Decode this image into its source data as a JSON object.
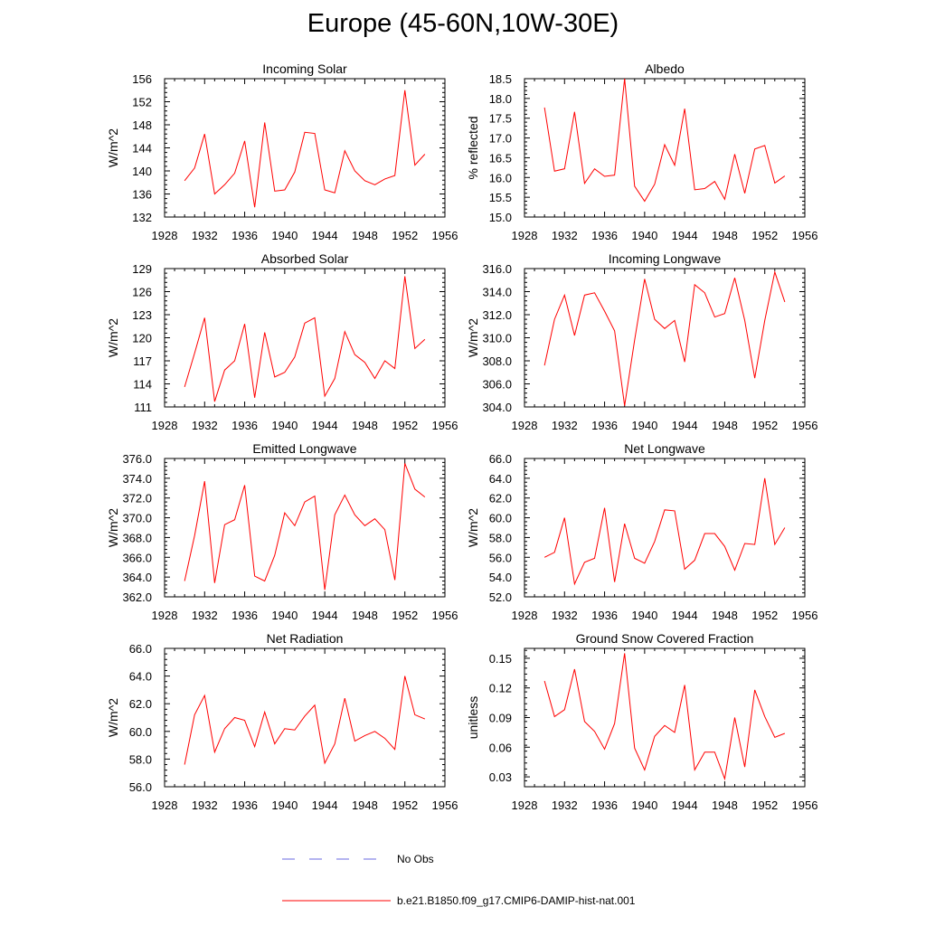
{
  "figure": {
    "title": "Europe (45-60N,10W-30E)"
  },
  "legend": {
    "entries": [
      {
        "label": "No Obs",
        "color": "#6a6ae0",
        "style": "dashed"
      },
      {
        "label": "b.e21.B1850.f09_g17.CMIP6-DAMIP-hist-nat.001",
        "color": "#ff0000",
        "style": "solid"
      }
    ]
  },
  "chart_data": [
    {
      "type": "line",
      "title": "Incoming Solar",
      "ylabel": "W/m^2",
      "xlim": [
        1928,
        1956
      ],
      "ylim": [
        132,
        156
      ],
      "xticks": [
        1928,
        1932,
        1936,
        1940,
        1944,
        1948,
        1952,
        1956
      ],
      "xtick_labels": [
        "1928",
        "1932",
        "1936",
        "1940",
        "1944",
        "1948",
        "1952",
        "1956"
      ],
      "yticks": [
        132,
        136,
        140,
        144,
        148,
        152,
        156
      ],
      "ytick_labels": [
        "132",
        "136",
        "140",
        "144",
        "148",
        "152",
        "156"
      ],
      "x": [
        1930,
        1931,
        1932,
        1933,
        1934,
        1935,
        1936,
        1937,
        1938,
        1939,
        1940,
        1941,
        1942,
        1943,
        1944,
        1945,
        1946,
        1947,
        1948,
        1949,
        1950,
        1951,
        1952,
        1953,
        1954
      ],
      "series": [
        {
          "color": "#ff0000",
          "values": [
            138.3,
            140.5,
            146.4,
            136.0,
            137.6,
            139.6,
            145.2,
            133.7,
            148.4,
            136.5,
            136.7,
            139.8,
            146.7,
            146.5,
            136.7,
            136.2,
            143.5,
            140.0,
            138.3,
            137.6,
            138.6,
            139.2,
            154.0,
            141.0,
            142.9
          ]
        }
      ]
    },
    {
      "type": "line",
      "title": "Albedo",
      "ylabel": "% reflected",
      "xlim": [
        1928,
        1956
      ],
      "ylim": [
        15.0,
        18.5
      ],
      "xticks": [
        1928,
        1932,
        1936,
        1940,
        1944,
        1948,
        1952,
        1956
      ],
      "xtick_labels": [
        "1928",
        "1932",
        "1936",
        "1940",
        "1944",
        "1948",
        "1952",
        "1956"
      ],
      "yticks": [
        15.0,
        15.5,
        16.0,
        16.5,
        17.0,
        17.5,
        18.0,
        18.5
      ],
      "ytick_labels": [
        "15.0",
        "15.5",
        "16.0",
        "16.5",
        "17.0",
        "17.5",
        "18.0",
        "18.5"
      ],
      "x": [
        1930,
        1931,
        1932,
        1933,
        1934,
        1935,
        1936,
        1937,
        1938,
        1939,
        1940,
        1941,
        1942,
        1943,
        1944,
        1945,
        1946,
        1947,
        1948,
        1949,
        1950,
        1951,
        1952,
        1953,
        1954
      ],
      "series": [
        {
          "color": "#ff0000",
          "values": [
            17.77,
            16.16,
            16.22,
            17.66,
            15.85,
            16.22,
            16.03,
            16.06,
            18.5,
            15.78,
            15.4,
            15.83,
            16.83,
            16.31,
            17.74,
            15.69,
            15.72,
            15.9,
            15.45,
            16.59,
            15.6,
            16.72,
            16.81,
            15.86,
            16.04
          ]
        }
      ]
    },
    {
      "type": "line",
      "title": "Absorbed Solar",
      "ylabel": "W/m^2",
      "xlim": [
        1928,
        1956
      ],
      "ylim": [
        111,
        129
      ],
      "xticks": [
        1928,
        1932,
        1936,
        1940,
        1944,
        1948,
        1952,
        1956
      ],
      "xtick_labels": [
        "1928",
        "1932",
        "1936",
        "1940",
        "1944",
        "1948",
        "1952",
        "1956"
      ],
      "yticks": [
        111,
        114,
        117,
        120,
        123,
        126,
        129
      ],
      "ytick_labels": [
        "111",
        "114",
        "117",
        "120",
        "123",
        "126",
        "129"
      ],
      "x": [
        1930,
        1931,
        1932,
        1933,
        1934,
        1935,
        1936,
        1937,
        1938,
        1939,
        1940,
        1941,
        1942,
        1943,
        1944,
        1945,
        1946,
        1947,
        1948,
        1949,
        1950,
        1951,
        1952,
        1953,
        1954
      ],
      "series": [
        {
          "color": "#ff0000",
          "values": [
            113.6,
            118.0,
            122.6,
            111.7,
            115.8,
            117.0,
            121.8,
            112.2,
            120.7,
            114.9,
            115.5,
            117.5,
            121.9,
            122.6,
            112.4,
            114.7,
            120.8,
            117.8,
            116.8,
            114.7,
            117.0,
            116.0,
            128.0,
            118.6,
            119.8
          ]
        }
      ]
    },
    {
      "type": "line",
      "title": "Incoming Longwave",
      "ylabel": "W/m^2",
      "xlim": [
        1928,
        1956
      ],
      "ylim": [
        304,
        316
      ],
      "xticks": [
        1928,
        1932,
        1936,
        1940,
        1944,
        1948,
        1952,
        1956
      ],
      "xtick_labels": [
        "1928",
        "1932",
        "1936",
        "1940",
        "1944",
        "1948",
        "1952",
        "1956"
      ],
      "yticks": [
        304,
        306,
        308,
        310,
        312,
        314,
        316
      ],
      "ytick_labels": [
        "304.0",
        "306.0",
        "308.0",
        "310.0",
        "312.0",
        "314.0",
        "316.0"
      ],
      "x": [
        1930,
        1931,
        1932,
        1933,
        1934,
        1935,
        1936,
        1937,
        1938,
        1939,
        1940,
        1941,
        1942,
        1943,
        1944,
        1945,
        1946,
        1947,
        1948,
        1949,
        1950,
        1951,
        1952,
        1953,
        1954
      ],
      "series": [
        {
          "color": "#ff0000",
          "values": [
            307.6,
            311.6,
            313.7,
            310.2,
            313.7,
            313.9,
            312.3,
            310.6,
            304.1,
            309.8,
            315.1,
            311.6,
            310.8,
            311.5,
            307.9,
            314.6,
            313.9,
            311.8,
            312.1,
            315.2,
            311.5,
            306.5,
            311.5,
            315.7,
            313.1
          ]
        }
      ]
    },
    {
      "type": "line",
      "title": "Emitted Longwave",
      "ylabel": "W/m^2",
      "xlim": [
        1928,
        1956
      ],
      "ylim": [
        362,
        376
      ],
      "xticks": [
        1928,
        1932,
        1936,
        1940,
        1944,
        1948,
        1952,
        1956
      ],
      "xtick_labels": [
        "1928",
        "1932",
        "1936",
        "1940",
        "1944",
        "1948",
        "1952",
        "1956"
      ],
      "yticks": [
        362,
        364,
        366,
        368,
        370,
        372,
        374,
        376
      ],
      "ytick_labels": [
        "362.0",
        "364.0",
        "366.0",
        "368.0",
        "370.0",
        "372.0",
        "374.0",
        "376.0"
      ],
      "x": [
        1930,
        1931,
        1932,
        1933,
        1934,
        1935,
        1936,
        1937,
        1938,
        1939,
        1940,
        1941,
        1942,
        1943,
        1944,
        1945,
        1946,
        1947,
        1948,
        1949,
        1950,
        1951,
        1952,
        1953,
        1954
      ],
      "series": [
        {
          "color": "#ff0000",
          "values": [
            363.6,
            368.2,
            373.7,
            363.4,
            369.3,
            369.8,
            373.3,
            364.1,
            363.6,
            366.2,
            370.5,
            369.2,
            371.6,
            372.2,
            362.7,
            370.3,
            372.3,
            370.3,
            369.2,
            369.9,
            368.8,
            363.7,
            375.5,
            372.9,
            372.1
          ]
        }
      ]
    },
    {
      "type": "line",
      "title": "Net Longwave",
      "ylabel": "W/m^2",
      "xlim": [
        1928,
        1956
      ],
      "ylim": [
        52,
        66
      ],
      "xticks": [
        1928,
        1932,
        1936,
        1940,
        1944,
        1948,
        1952,
        1956
      ],
      "xtick_labels": [
        "1928",
        "1932",
        "1936",
        "1940",
        "1944",
        "1948",
        "1952",
        "1956"
      ],
      "yticks": [
        52,
        54,
        56,
        58,
        60,
        62,
        64,
        66
      ],
      "ytick_labels": [
        "52.0",
        "54.0",
        "56.0",
        "58.0",
        "60.0",
        "62.0",
        "64.0",
        "66.0"
      ],
      "x": [
        1930,
        1931,
        1932,
        1933,
        1934,
        1935,
        1936,
        1937,
        1938,
        1939,
        1940,
        1941,
        1942,
        1943,
        1944,
        1945,
        1946,
        1947,
        1948,
        1949,
        1950,
        1951,
        1952,
        1953,
        1954
      ],
      "series": [
        {
          "color": "#ff0000",
          "values": [
            56.0,
            56.5,
            60.0,
            53.3,
            55.5,
            55.9,
            61.0,
            53.5,
            59.4,
            55.9,
            55.4,
            57.6,
            60.8,
            60.7,
            54.8,
            55.7,
            58.4,
            58.4,
            57.1,
            54.7,
            57.4,
            57.3,
            64.0,
            57.3,
            59.0
          ]
        }
      ]
    },
    {
      "type": "line",
      "title": "Net Radiation",
      "ylabel": "W/m^2",
      "xlim": [
        1928,
        1956
      ],
      "ylim": [
        56,
        66
      ],
      "xticks": [
        1928,
        1932,
        1936,
        1940,
        1944,
        1948,
        1952,
        1956
      ],
      "xtick_labels": [
        "1928",
        "1932",
        "1936",
        "1940",
        "1944",
        "1948",
        "1952",
        "1956"
      ],
      "yticks": [
        56,
        58,
        60,
        62,
        64,
        66
      ],
      "ytick_labels": [
        "56.0",
        "58.0",
        "60.0",
        "62.0",
        "64.0",
        "66.0"
      ],
      "x": [
        1930,
        1931,
        1932,
        1933,
        1934,
        1935,
        1936,
        1937,
        1938,
        1939,
        1940,
        1941,
        1942,
        1943,
        1944,
        1945,
        1946,
        1947,
        1948,
        1949,
        1950,
        1951,
        1952,
        1953,
        1954
      ],
      "series": [
        {
          "color": "#ff0000",
          "values": [
            57.6,
            61.2,
            62.6,
            58.5,
            60.2,
            61.0,
            60.8,
            58.9,
            61.4,
            59.1,
            60.2,
            60.1,
            61.1,
            61.9,
            57.7,
            59.1,
            62.4,
            59.3,
            59.7,
            60.0,
            59.5,
            58.7,
            64.0,
            61.2,
            60.9
          ]
        }
      ]
    },
    {
      "type": "line",
      "title": "Ground Snow Covered Fraction",
      "ylabel": "unitless",
      "xlim": [
        1928,
        1956
      ],
      "ylim": [
        0.02,
        0.16
      ],
      "xticks": [
        1928,
        1932,
        1936,
        1940,
        1944,
        1948,
        1952,
        1956
      ],
      "xtick_labels": [
        "1928",
        "1932",
        "1936",
        "1940",
        "1944",
        "1948",
        "1952",
        "1956"
      ],
      "yticks": [
        0.03,
        0.06,
        0.09,
        0.12,
        0.15
      ],
      "ytick_labels": [
        "0.03",
        "0.06",
        "0.09",
        "0.12",
        "0.15"
      ],
      "x": [
        1930,
        1931,
        1932,
        1933,
        1934,
        1935,
        1936,
        1937,
        1938,
        1939,
        1940,
        1941,
        1942,
        1943,
        1944,
        1945,
        1946,
        1947,
        1948,
        1949,
        1950,
        1951,
        1952,
        1953,
        1954
      ],
      "series": [
        {
          "color": "#ff0000",
          "values": [
            0.127,
            0.091,
            0.098,
            0.139,
            0.086,
            0.076,
            0.058,
            0.084,
            0.155,
            0.059,
            0.037,
            0.071,
            0.082,
            0.075,
            0.123,
            0.037,
            0.055,
            0.055,
            0.028,
            0.09,
            0.04,
            0.118,
            0.091,
            0.07,
            0.074
          ]
        }
      ]
    }
  ]
}
